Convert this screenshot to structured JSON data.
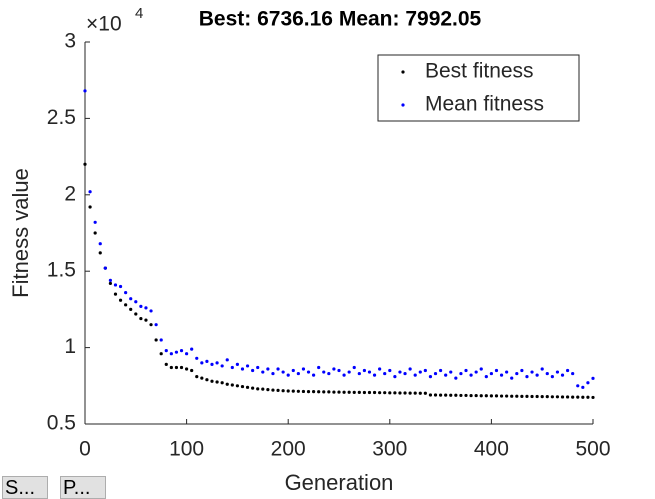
{
  "chart_data": {
    "type": "scatter",
    "title": "Best: 6736.16 Mean: 7992.05",
    "x_label": "Generation",
    "y_label": "Fitness value",
    "y_multiplier": {
      "base": "×10",
      "power": "4"
    },
    "xlim": [
      0,
      500
    ],
    "xticks": [
      0,
      100,
      200,
      300,
      400,
      500
    ],
    "ylim": [
      0.5,
      3
    ],
    "yticks": [
      0.5,
      1,
      1.5,
      2,
      2.5,
      3
    ],
    "legend_position": "upper right",
    "x": [
      0,
      5,
      10,
      15,
      20,
      25,
      30,
      35,
      40,
      45,
      50,
      55,
      60,
      65,
      70,
      75,
      80,
      85,
      90,
      95,
      100,
      105,
      110,
      115,
      120,
      125,
      130,
      135,
      140,
      145,
      150,
      155,
      160,
      165,
      170,
      175,
      180,
      185,
      190,
      195,
      200,
      205,
      210,
      215,
      220,
      225,
      230,
      235,
      240,
      245,
      250,
      255,
      260,
      265,
      270,
      275,
      280,
      285,
      290,
      295,
      300,
      305,
      310,
      315,
      320,
      325,
      330,
      335,
      340,
      345,
      350,
      355,
      360,
      365,
      370,
      375,
      380,
      385,
      390,
      395,
      400,
      405,
      410,
      415,
      420,
      425,
      430,
      435,
      440,
      445,
      450,
      455,
      460,
      465,
      470,
      475,
      480,
      485,
      490,
      495,
      500
    ],
    "series": [
      {
        "name": "Best fitness",
        "color": "#000000",
        "values": [
          2.2,
          1.92,
          1.75,
          1.62,
          1.52,
          1.42,
          1.35,
          1.31,
          1.28,
          1.25,
          1.22,
          1.19,
          1.18,
          1.15,
          1.05,
          0.96,
          0.89,
          0.87,
          0.87,
          0.87,
          0.86,
          0.85,
          0.81,
          0.8,
          0.79,
          0.78,
          0.775,
          0.77,
          0.76,
          0.755,
          0.75,
          0.745,
          0.74,
          0.735,
          0.73,
          0.728,
          0.725,
          0.722,
          0.72,
          0.718,
          0.716,
          0.715,
          0.714,
          0.713,
          0.712,
          0.712,
          0.711,
          0.71,
          0.71,
          0.709,
          0.709,
          0.708,
          0.708,
          0.707,
          0.707,
          0.706,
          0.706,
          0.706,
          0.705,
          0.705,
          0.704,
          0.704,
          0.703,
          0.703,
          0.702,
          0.702,
          0.701,
          0.701,
          0.69,
          0.69,
          0.689,
          0.689,
          0.688,
          0.688,
          0.687,
          0.687,
          0.686,
          0.686,
          0.685,
          0.685,
          0.684,
          0.684,
          0.683,
          0.683,
          0.682,
          0.682,
          0.681,
          0.681,
          0.68,
          0.68,
          0.679,
          0.679,
          0.678,
          0.678,
          0.677,
          0.677,
          0.676,
          0.676,
          0.675,
          0.675,
          0.674
        ]
      },
      {
        "name": "Mean fitness",
        "color": "#0000ff",
        "values": [
          2.68,
          2.02,
          1.82,
          1.68,
          1.52,
          1.44,
          1.41,
          1.4,
          1.36,
          1.32,
          1.3,
          1.27,
          1.26,
          1.24,
          1.15,
          1.05,
          0.98,
          0.96,
          0.97,
          0.98,
          0.96,
          0.99,
          0.93,
          0.9,
          0.91,
          0.89,
          0.9,
          0.88,
          0.92,
          0.87,
          0.89,
          0.86,
          0.88,
          0.85,
          0.87,
          0.84,
          0.86,
          0.83,
          0.86,
          0.84,
          0.82,
          0.85,
          0.83,
          0.86,
          0.84,
          0.82,
          0.87,
          0.84,
          0.83,
          0.86,
          0.85,
          0.82,
          0.84,
          0.87,
          0.83,
          0.85,
          0.84,
          0.82,
          0.86,
          0.83,
          0.85,
          0.81,
          0.84,
          0.83,
          0.86,
          0.82,
          0.84,
          0.85,
          0.81,
          0.83,
          0.85,
          0.82,
          0.84,
          0.8,
          0.83,
          0.85,
          0.82,
          0.84,
          0.86,
          0.81,
          0.83,
          0.85,
          0.82,
          0.84,
          0.8,
          0.83,
          0.85,
          0.81,
          0.84,
          0.82,
          0.86,
          0.83,
          0.81,
          0.84,
          0.82,
          0.85,
          0.83,
          0.75,
          0.74,
          0.77,
          0.799
        ]
      }
    ]
  },
  "buttons": [
    "S...",
    "P..."
  ]
}
